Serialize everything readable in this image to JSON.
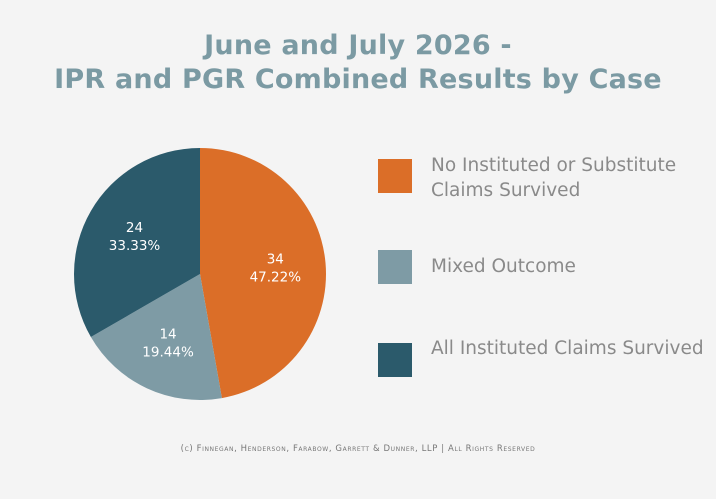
{
  "title_line1": "June and July 2026 -",
  "title_line2": "IPR and PGR Combined Results by Case",
  "footer": "(c) Finnegan, Henderson, Farabow, Garrett & Dunner, LLP | All Rights Reserved",
  "chart_data": {
    "type": "pie",
    "title": "June and July 2026 - IPR and PGR Combined Results by Case",
    "legend_position": "right",
    "slices": [
      {
        "name": "No Instituted or Substitute Claims Survived",
        "value": 34,
        "percent_label": "47.22%",
        "color": "#db6e28",
        "label_color": "#ffffff"
      },
      {
        "name": "Mixed Outcome",
        "value": 14,
        "percent_label": "19.44%",
        "color": "#7e9ba5",
        "label_color": "#ffffff"
      },
      {
        "name": "All Instituted Claims Survived",
        "value": 24,
        "percent_label": "33.33%",
        "color": "#2b5a6b",
        "label_color": "#ffffff"
      }
    ]
  }
}
